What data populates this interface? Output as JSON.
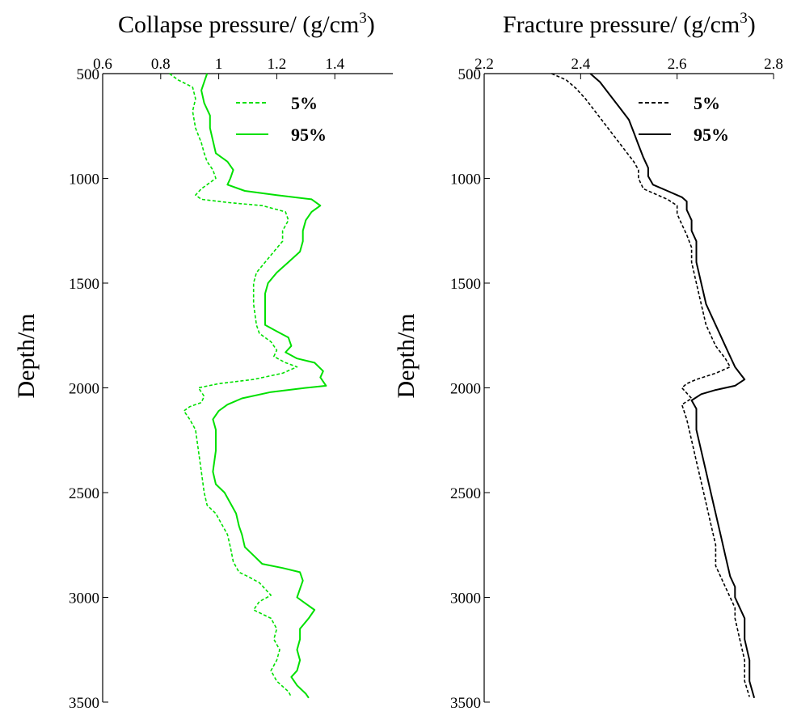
{
  "chart_data": [
    {
      "type": "line",
      "title": "Collapse pressure/ (g/cm",
      "title_superscript": "3",
      "title_suffix": ")",
      "xlabel": "Collapse pressure/ (g/cm3)",
      "ylabel": "Depth/m",
      "xlim": [
        0.6,
        1.6
      ],
      "ylim": [
        500,
        3500
      ],
      "y_reversed": true,
      "x_ticks": [
        0.6,
        0.8,
        1,
        1.2,
        1.4
      ],
      "x_tick_labels": [
        "0.6",
        "0.8",
        "1",
        "1.2",
        "1.4"
      ],
      "y_ticks": [
        500,
        1000,
        1500,
        2000,
        2500,
        3000,
        3500
      ],
      "y_tick_labels": [
        "500",
        "1000",
        "1500",
        "2000",
        "2500",
        "3000",
        "3500"
      ],
      "x_axis_position": "top",
      "grid": false,
      "legend_position": "top-right",
      "color": "#00e000",
      "series": [
        {
          "name": "5%",
          "style": "dashed",
          "points": [
            [
              0.83,
              500
            ],
            [
              0.86,
              530
            ],
            [
              0.91,
              565
            ],
            [
              0.92,
              620
            ],
            [
              0.91,
              680
            ],
            [
              0.92,
              760
            ],
            [
              0.94,
              830
            ],
            [
              0.95,
              880
            ],
            [
              0.96,
              920
            ],
            [
              0.98,
              960
            ],
            [
              0.99,
              1000
            ],
            [
              0.96,
              1030
            ],
            [
              0.94,
              1050
            ],
            [
              0.92,
              1080
            ],
            [
              0.94,
              1100
            ],
            [
              1.03,
              1115
            ],
            [
              1.15,
              1130
            ],
            [
              1.23,
              1160
            ],
            [
              1.24,
              1200
            ],
            [
              1.22,
              1250
            ],
            [
              1.22,
              1300
            ],
            [
              1.19,
              1350
            ],
            [
              1.16,
              1400
            ],
            [
              1.13,
              1450
            ],
            [
              1.12,
              1500
            ],
            [
              1.12,
              1600
            ],
            [
              1.13,
              1700
            ],
            [
              1.14,
              1740
            ],
            [
              1.18,
              1780
            ],
            [
              1.2,
              1820
            ],
            [
              1.19,
              1850
            ],
            [
              1.23,
              1880
            ],
            [
              1.27,
              1900
            ],
            [
              1.22,
              1930
            ],
            [
              1.12,
              1960
            ],
            [
              1.0,
              1980
            ],
            [
              0.93,
              2000
            ],
            [
              0.95,
              2040
            ],
            [
              0.94,
              2070
            ],
            [
              0.9,
              2090
            ],
            [
              0.88,
              2110
            ],
            [
              0.9,
              2150
            ],
            [
              0.92,
              2200
            ],
            [
              0.93,
              2300
            ],
            [
              0.94,
              2400
            ],
            [
              0.95,
              2500
            ],
            [
              0.96,
              2560
            ],
            [
              0.99,
              2600
            ],
            [
              1.01,
              2650
            ],
            [
              1.03,
              2700
            ],
            [
              1.04,
              2760
            ],
            [
              1.05,
              2830
            ],
            [
              1.07,
              2880
            ],
            [
              1.1,
              2900
            ],
            [
              1.14,
              2930
            ],
            [
              1.16,
              2960
            ],
            [
              1.18,
              2990
            ],
            [
              1.14,
              3020
            ],
            [
              1.12,
              3060
            ],
            [
              1.18,
              3100
            ],
            [
              1.2,
              3150
            ],
            [
              1.19,
              3200
            ],
            [
              1.21,
              3250
            ],
            [
              1.2,
              3300
            ],
            [
              1.18,
              3350
            ],
            [
              1.2,
              3400
            ],
            [
              1.24,
              3450
            ],
            [
              1.25,
              3475
            ]
          ]
        },
        {
          "name": "95%",
          "style": "solid",
          "points": [
            [
              0.96,
              500
            ],
            [
              0.95,
              540
            ],
            [
              0.94,
              580
            ],
            [
              0.95,
              640
            ],
            [
              0.97,
              700
            ],
            [
              0.97,
              760
            ],
            [
              0.98,
              820
            ],
            [
              0.99,
              880
            ],
            [
              1.03,
              920
            ],
            [
              1.05,
              960
            ],
            [
              1.04,
              1000
            ],
            [
              1.03,
              1030
            ],
            [
              1.09,
              1060
            ],
            [
              1.2,
              1080
            ],
            [
              1.32,
              1100
            ],
            [
              1.35,
              1130
            ],
            [
              1.32,
              1160
            ],
            [
              1.3,
              1200
            ],
            [
              1.29,
              1250
            ],
            [
              1.29,
              1300
            ],
            [
              1.28,
              1350
            ],
            [
              1.24,
              1400
            ],
            [
              1.2,
              1450
            ],
            [
              1.17,
              1500
            ],
            [
              1.16,
              1550
            ],
            [
              1.16,
              1650
            ],
            [
              1.16,
              1700
            ],
            [
              1.2,
              1730
            ],
            [
              1.24,
              1760
            ],
            [
              1.25,
              1800
            ],
            [
              1.23,
              1830
            ],
            [
              1.27,
              1860
            ],
            [
              1.33,
              1880
            ],
            [
              1.36,
              1920
            ],
            [
              1.35,
              1950
            ],
            [
              1.37,
              1990
            ],
            [
              1.3,
              2000
            ],
            [
              1.18,
              2020
            ],
            [
              1.08,
              2050
            ],
            [
              1.03,
              2080
            ],
            [
              1.0,
              2110
            ],
            [
              0.98,
              2150
            ],
            [
              0.99,
              2200
            ],
            [
              0.99,
              2300
            ],
            [
              0.98,
              2400
            ],
            [
              0.99,
              2460
            ],
            [
              1.02,
              2500
            ],
            [
              1.04,
              2550
            ],
            [
              1.06,
              2600
            ],
            [
              1.07,
              2660
            ],
            [
              1.08,
              2700
            ],
            [
              1.09,
              2760
            ],
            [
              1.12,
              2800
            ],
            [
              1.15,
              2840
            ],
            [
              1.22,
              2860
            ],
            [
              1.28,
              2880
            ],
            [
              1.29,
              2920
            ],
            [
              1.28,
              2960
            ],
            [
              1.27,
              3000
            ],
            [
              1.3,
              3030
            ],
            [
              1.33,
              3060
            ],
            [
              1.31,
              3100
            ],
            [
              1.28,
              3150
            ],
            [
              1.28,
              3200
            ],
            [
              1.27,
              3250
            ],
            [
              1.28,
              3300
            ],
            [
              1.27,
              3350
            ],
            [
              1.25,
              3380
            ],
            [
              1.27,
              3420
            ],
            [
              1.3,
              3460
            ],
            [
              1.31,
              3480
            ]
          ]
        }
      ]
    },
    {
      "type": "line",
      "title": "Fracture pressure/ (g/cm",
      "title_superscript": "3",
      "title_suffix": ")",
      "xlabel": "Fracture pressure/ (g/cm3)",
      "ylabel": "Depth/m",
      "xlim": [
        2.2,
        2.8
      ],
      "ylim": [
        500,
        3500
      ],
      "y_reversed": true,
      "x_ticks": [
        2.2,
        2.4,
        2.6,
        2.8
      ],
      "x_tick_labels": [
        "2.2",
        "2.4",
        "2.6",
        "2.8"
      ],
      "y_ticks": [
        500,
        1000,
        1500,
        2000,
        2500,
        3000,
        3500
      ],
      "y_tick_labels": [
        "500",
        "1000",
        "1500",
        "2000",
        "2500",
        "3000",
        "3500"
      ],
      "x_axis_position": "top",
      "grid": false,
      "legend_position": "top-right",
      "color": "#000000",
      "series": [
        {
          "name": "5%",
          "style": "dashed",
          "points": [
            [
              2.34,
              500
            ],
            [
              2.37,
              530
            ],
            [
              2.39,
              570
            ],
            [
              2.41,
              620
            ],
            [
              2.43,
              680
            ],
            [
              2.45,
              740
            ],
            [
              2.47,
              800
            ],
            [
              2.49,
              860
            ],
            [
              2.51,
              920
            ],
            [
              2.52,
              960
            ],
            [
              2.52,
              1000
            ],
            [
              2.53,
              1050
            ],
            [
              2.55,
              1070
            ],
            [
              2.58,
              1100
            ],
            [
              2.6,
              1130
            ],
            [
              2.6,
              1170
            ],
            [
              2.61,
              1220
            ],
            [
              2.62,
              1270
            ],
            [
              2.63,
              1330
            ],
            [
              2.63,
              1400
            ],
            [
              2.64,
              1500
            ],
            [
              2.65,
              1600
            ],
            [
              2.66,
              1700
            ],
            [
              2.68,
              1800
            ],
            [
              2.7,
              1860
            ],
            [
              2.71,
              1900
            ],
            [
              2.68,
              1930
            ],
            [
              2.64,
              1960
            ],
            [
              2.62,
              1980
            ],
            [
              2.61,
              2000
            ],
            [
              2.63,
              2050
            ],
            [
              2.61,
              2080
            ],
            [
              2.62,
              2150
            ],
            [
              2.63,
              2250
            ],
            [
              2.64,
              2350
            ],
            [
              2.65,
              2450
            ],
            [
              2.66,
              2550
            ],
            [
              2.67,
              2650
            ],
            [
              2.68,
              2750
            ],
            [
              2.68,
              2850
            ],
            [
              2.69,
              2900
            ],
            [
              2.7,
              2950
            ],
            [
              2.71,
              3000
            ],
            [
              2.72,
              3050
            ],
            [
              2.72,
              3100
            ],
            [
              2.73,
              3200
            ],
            [
              2.74,
              3300
            ],
            [
              2.74,
              3400
            ],
            [
              2.75,
              3475
            ]
          ]
        },
        {
          "name": "95%",
          "style": "solid",
          "points": [
            [
              2.42,
              500
            ],
            [
              2.44,
              540
            ],
            [
              2.46,
              600
            ],
            [
              2.48,
              660
            ],
            [
              2.5,
              720
            ],
            [
              2.51,
              780
            ],
            [
              2.52,
              840
            ],
            [
              2.53,
              900
            ],
            [
              2.54,
              950
            ],
            [
              2.54,
              990
            ],
            [
              2.55,
              1030
            ],
            [
              2.58,
              1060
            ],
            [
              2.61,
              1090
            ],
            [
              2.62,
              1110
            ],
            [
              2.62,
              1150
            ],
            [
              2.63,
              1200
            ],
            [
              2.63,
              1250
            ],
            [
              2.64,
              1300
            ],
            [
              2.64,
              1400
            ],
            [
              2.65,
              1500
            ],
            [
              2.66,
              1600
            ],
            [
              2.68,
              1700
            ],
            [
              2.69,
              1750
            ],
            [
              2.7,
              1800
            ],
            [
              2.71,
              1850
            ],
            [
              2.72,
              1900
            ],
            [
              2.73,
              1930
            ],
            [
              2.74,
              1960
            ],
            [
              2.72,
              1990
            ],
            [
              2.68,
              2010
            ],
            [
              2.65,
              2030
            ],
            [
              2.63,
              2060
            ],
            [
              2.64,
              2100
            ],
            [
              2.64,
              2200
            ],
            [
              2.65,
              2300
            ],
            [
              2.66,
              2400
            ],
            [
              2.67,
              2500
            ],
            [
              2.68,
              2600
            ],
            [
              2.69,
              2700
            ],
            [
              2.7,
              2800
            ],
            [
              2.71,
              2900
            ],
            [
              2.72,
              2950
            ],
            [
              2.72,
              3000
            ],
            [
              2.73,
              3050
            ],
            [
              2.74,
              3100
            ],
            [
              2.74,
              3200
            ],
            [
              2.75,
              3300
            ],
            [
              2.75,
              3400
            ],
            [
              2.76,
              3480
            ]
          ]
        }
      ]
    }
  ]
}
